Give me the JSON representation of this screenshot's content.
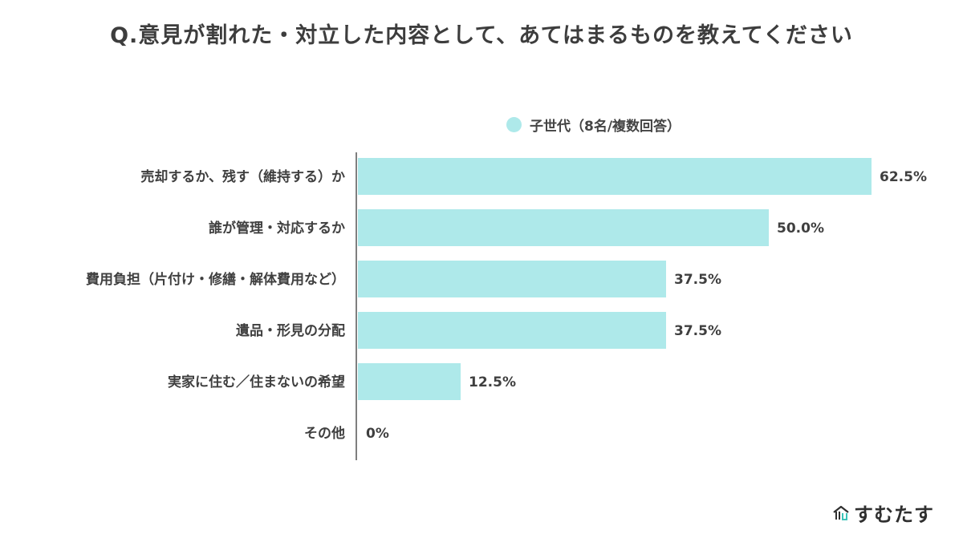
{
  "title": "Q.意見が割れた・対立した内容として、あてはまるものを教えてください",
  "brand": {
    "name": "すむたす",
    "icon": "house-logo-icon"
  },
  "colors": {
    "bar": "#aee9ea",
    "axis": "#555555",
    "text": "#3f3f3f"
  },
  "chart_data": {
    "type": "bar",
    "orientation": "horizontal",
    "categories": [
      "売却するか、残す（維持する）か",
      "誰が管理・対応するか",
      "費用負担（片付け・修繕・解体費用など）",
      "遺品・形見の分配",
      "実家に住む／住まないの希望",
      "その他"
    ],
    "series": [
      {
        "name": "子世代（8名/複数回答）",
        "values": [
          62.5,
          50.0,
          37.5,
          37.5,
          12.5,
          0
        ],
        "labels": [
          "62.5%",
          "50.0%",
          "37.5%",
          "37.5%",
          "12.5%",
          "0%"
        ]
      }
    ],
    "title": "Q.意見が割れた・対立した内容として、あてはまるものを教えてください",
    "xlim": [
      0,
      62.5
    ],
    "legend_position": "top-center",
    "grid": false
  }
}
